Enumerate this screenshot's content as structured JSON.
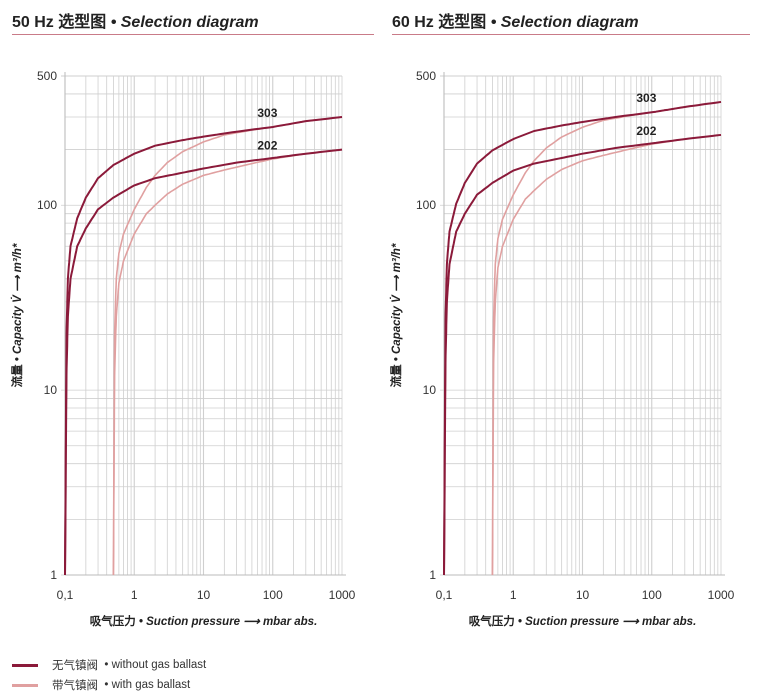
{
  "colors": {
    "without": "#8b1a3a",
    "with": "#e0a0a0",
    "grid": "#cfcfcf",
    "rule": "#c97b88"
  },
  "legend": [
    {
      "zh": "无气镇阀",
      "en": "• without gas ballast",
      "color": "#8b1a3a"
    },
    {
      "zh": "带气镇阀",
      "en": "• with gas ballast",
      "color": "#e0a0a0"
    }
  ],
  "chart_data": [
    {
      "type": "line",
      "title_prefix": "50 Hz 选型图",
      "title": "• Selection diagram",
      "xlabel_zh": "吸气压力",
      "xlabel": "• Suction pressure ⟶ mbar abs.",
      "ylabel_zh": "流量",
      "ylabel": "• Capacity V̇ ⟶ m³/h*",
      "xscale": "log",
      "yscale": "log",
      "xlim": [
        0.1,
        1000
      ],
      "ylim": [
        1,
        500
      ],
      "xticks": [
        "0,1",
        "1",
        "10",
        "100",
        "1000"
      ],
      "yticks": [
        "1",
        "10",
        "100",
        "500"
      ],
      "grid": true,
      "series": [
        {
          "name": "303",
          "ballast": false,
          "x": [
            0.1,
            0.105,
            0.11,
            0.12,
            0.15,
            0.2,
            0.3,
            0.5,
            1,
            2,
            5,
            10,
            30,
            100,
            300,
            1000
          ],
          "y": [
            1,
            20,
            40,
            60,
            85,
            110,
            140,
            165,
            190,
            210,
            225,
            235,
            250,
            265,
            285,
            300
          ]
        },
        {
          "name": "202",
          "ballast": false,
          "x": [
            0.1,
            0.105,
            0.11,
            0.12,
            0.15,
            0.2,
            0.3,
            0.5,
            1,
            2,
            5,
            10,
            30,
            100,
            300,
            1000
          ],
          "y": [
            1,
            12,
            25,
            40,
            60,
            75,
            95,
            110,
            128,
            140,
            150,
            158,
            170,
            180,
            190,
            200
          ]
        },
        {
          "name": "303",
          "ballast": true,
          "x": [
            0.5,
            0.52,
            0.55,
            0.6,
            0.7,
            1,
            1.5,
            2,
            3,
            5,
            10,
            20,
            50,
            100,
            300,
            1000
          ],
          "y": [
            1,
            20,
            40,
            55,
            70,
            95,
            125,
            145,
            170,
            195,
            220,
            240,
            255,
            265,
            285,
            300
          ]
        },
        {
          "name": "202",
          "ballast": true,
          "x": [
            0.5,
            0.52,
            0.55,
            0.6,
            0.7,
            1,
            1.5,
            2,
            3,
            5,
            10,
            20,
            50,
            100,
            300,
            1000
          ],
          "y": [
            1,
            12,
            25,
            38,
            50,
            70,
            90,
            100,
            115,
            130,
            145,
            155,
            168,
            178,
            190,
            200
          ]
        }
      ]
    },
    {
      "type": "line",
      "title_prefix": "60 Hz 选型图",
      "title": "• Selection diagram",
      "xlabel_zh": "吸气压力",
      "xlabel": "• Suction pressure ⟶ mbar abs.",
      "ylabel_zh": "流量",
      "ylabel": "• Capacity V̇ ⟶ m³/h*",
      "xscale": "log",
      "yscale": "log",
      "xlim": [
        0.1,
        1000
      ],
      "ylim": [
        1,
        500
      ],
      "xticks": [
        "0,1",
        "1",
        "10",
        "100",
        "1000"
      ],
      "yticks": [
        "1",
        "10",
        "100",
        "500"
      ],
      "grid": true,
      "series": [
        {
          "name": "303",
          "ballast": false,
          "x": [
            0.1,
            0.105,
            0.11,
            0.12,
            0.15,
            0.2,
            0.3,
            0.5,
            1,
            2,
            5,
            10,
            30,
            100,
            300,
            1000
          ],
          "y": [
            1,
            24,
            48,
            72,
            102,
            132,
            168,
            198,
            228,
            252,
            270,
            282,
            300,
            318,
            340,
            362
          ]
        },
        {
          "name": "202",
          "ballast": false,
          "x": [
            0.1,
            0.105,
            0.11,
            0.12,
            0.15,
            0.2,
            0.3,
            0.5,
            1,
            2,
            5,
            10,
            30,
            100,
            300,
            1000
          ],
          "y": [
            1,
            14,
            30,
            48,
            72,
            90,
            114,
            132,
            154,
            168,
            180,
            190,
            204,
            216,
            228,
            240
          ]
        },
        {
          "name": "303",
          "ballast": true,
          "x": [
            0.5,
            0.52,
            0.55,
            0.6,
            0.7,
            1,
            1.5,
            2,
            3,
            5,
            10,
            20,
            50,
            100,
            300,
            1000
          ],
          "y": [
            1,
            24,
            48,
            66,
            84,
            114,
            150,
            174,
            204,
            234,
            264,
            288,
            306,
            318,
            340,
            362
          ]
        },
        {
          "name": "202",
          "ballast": true,
          "x": [
            0.5,
            0.52,
            0.55,
            0.6,
            0.7,
            1,
            1.5,
            2,
            3,
            5,
            10,
            20,
            50,
            100,
            300,
            1000
          ],
          "y": [
            1,
            14,
            30,
            46,
            60,
            84,
            108,
            120,
            138,
            156,
            174,
            186,
            202,
            214,
            228,
            240
          ]
        }
      ]
    }
  ]
}
